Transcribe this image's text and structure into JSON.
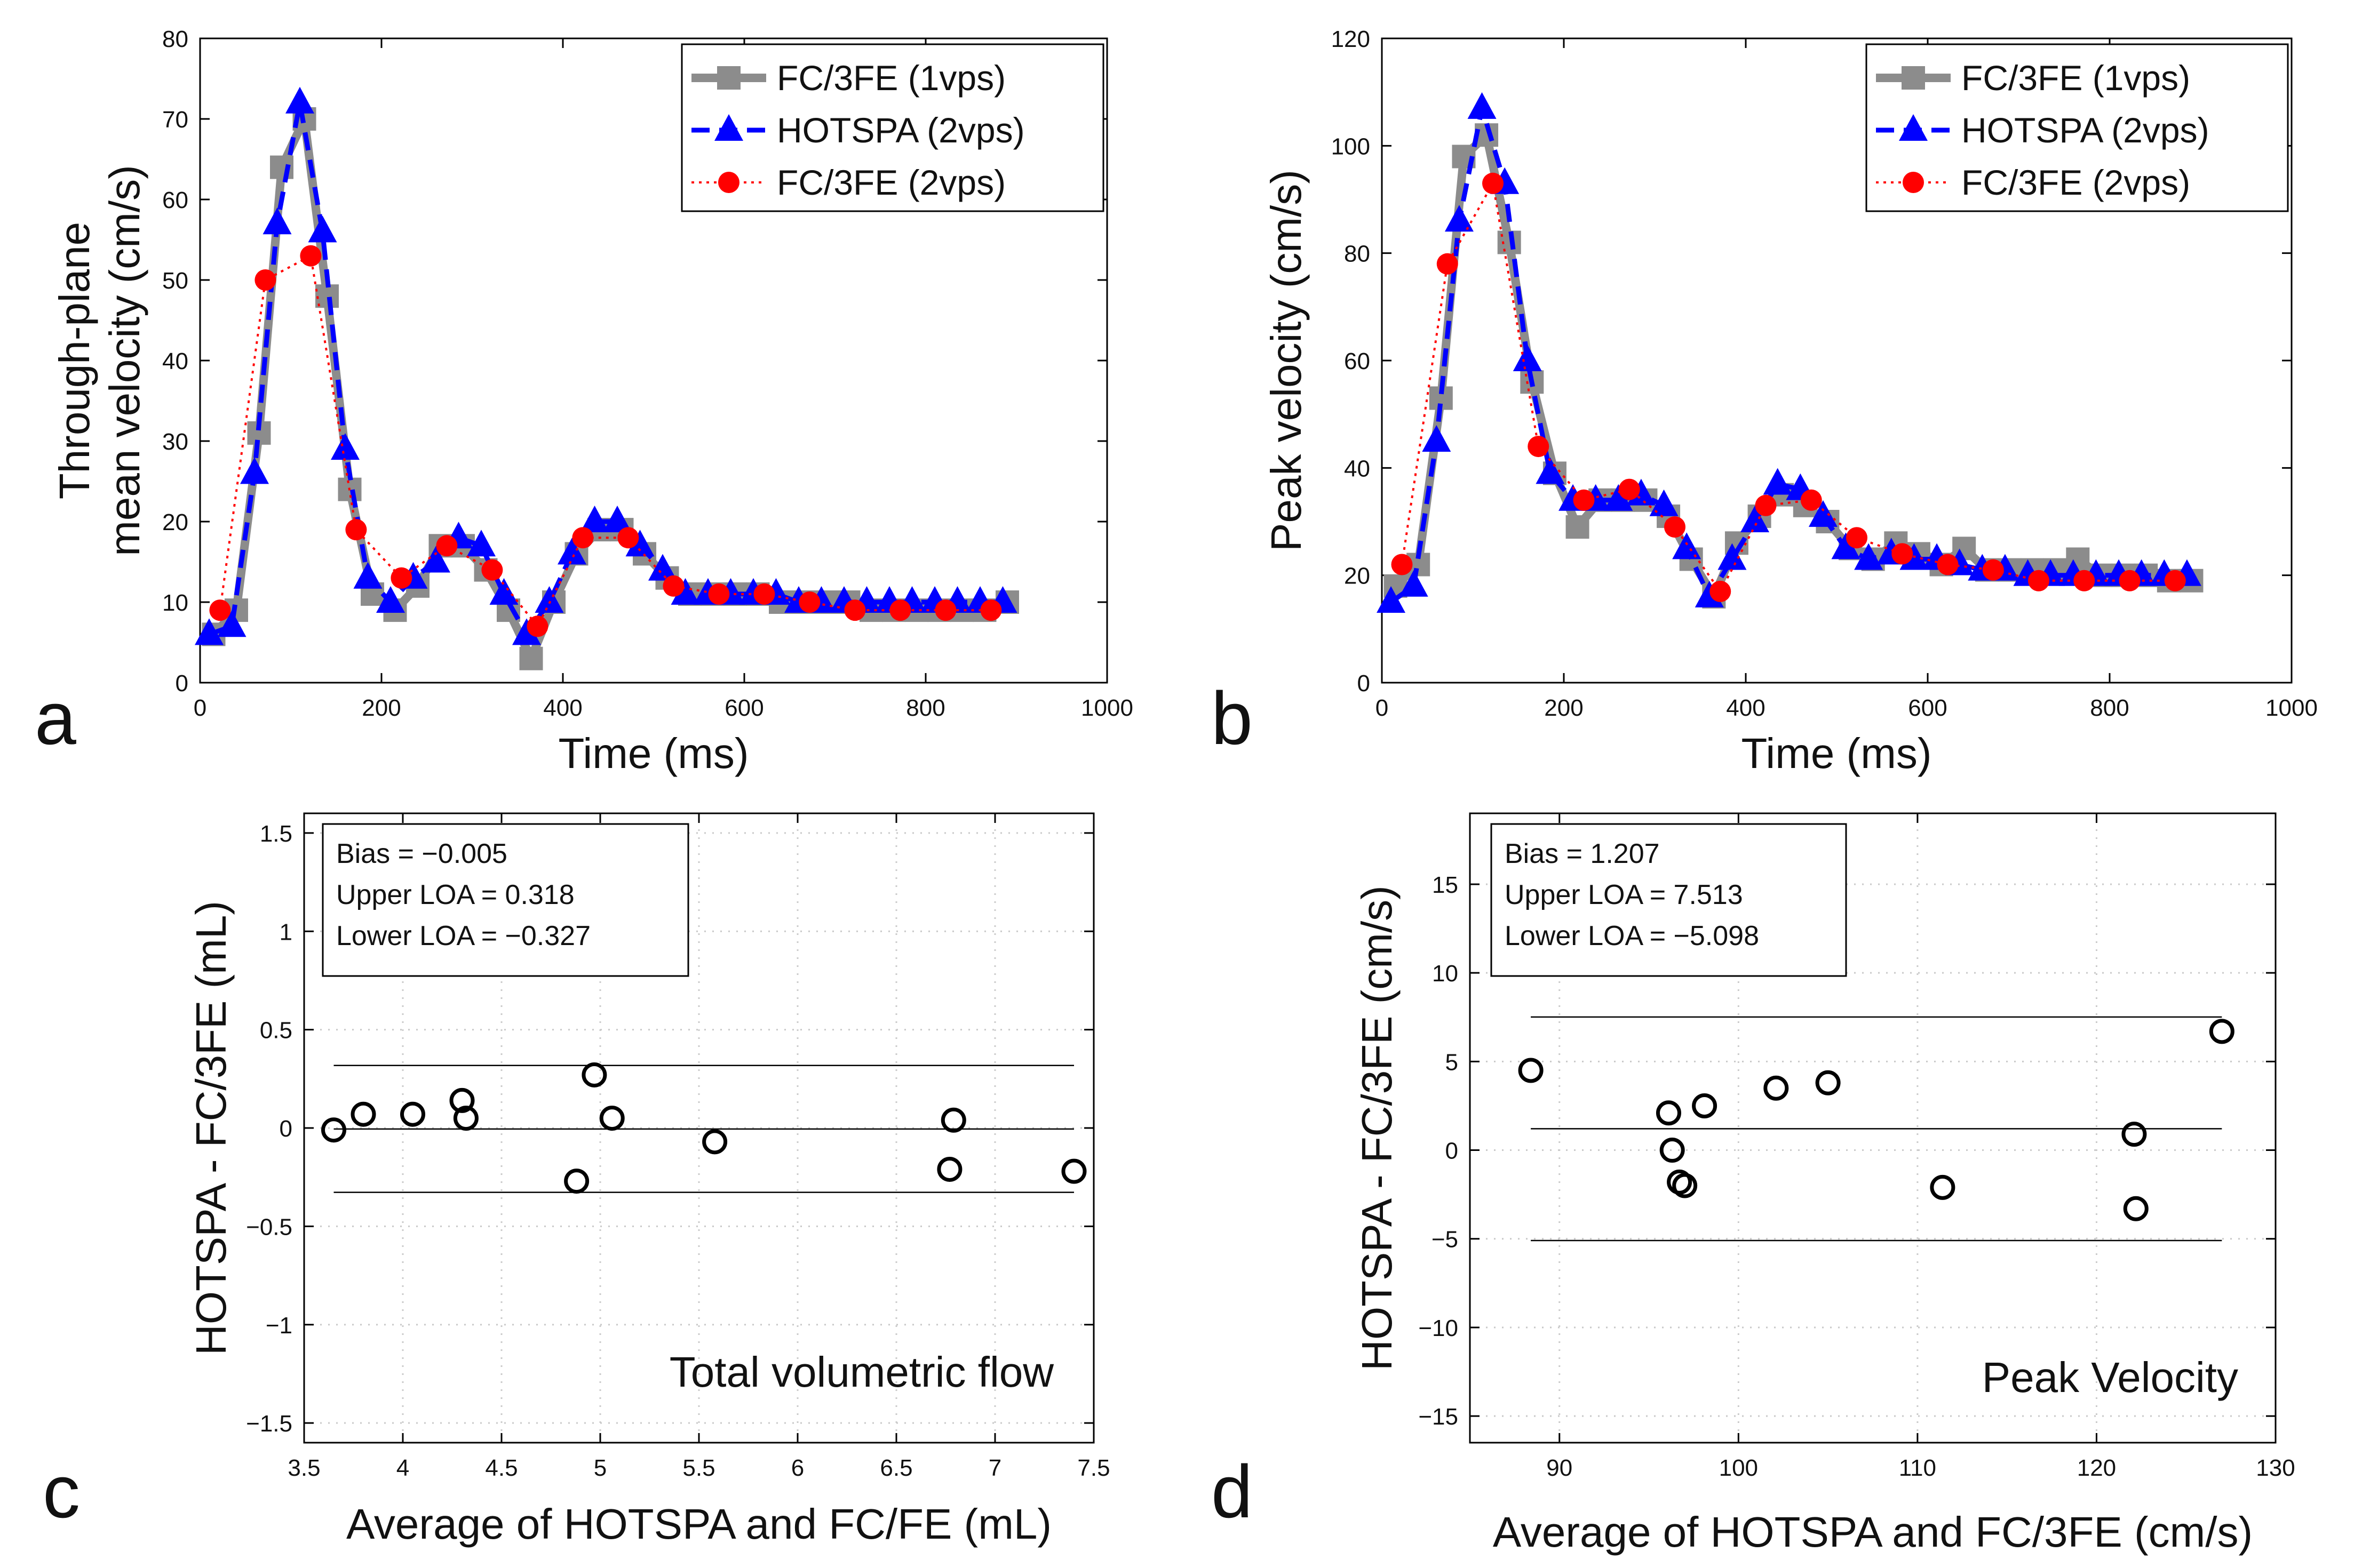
{
  "figure": {
    "panels": {
      "a": "a",
      "b": "b",
      "c": "c",
      "d": "d"
    }
  },
  "chart_data": [
    {
      "id": "a",
      "type": "line",
      "title": "",
      "xlabel": "Time (ms)",
      "ylabel_lines": [
        "Through-plane",
        "mean velocity (cm/s)"
      ],
      "xlim": [
        0,
        1000
      ],
      "ylim": [
        0,
        80
      ],
      "xticks": [
        0,
        200,
        400,
        600,
        800,
        1000
      ],
      "yticks": [
        0,
        10,
        20,
        30,
        40,
        50,
        60,
        70,
        80
      ],
      "grid": false,
      "legend_position": "top-right",
      "series": [
        {
          "name": "FC/3FE (1vps)",
          "color": "#8c8c8c",
          "marker": "square",
          "dash": "solid",
          "x": [
            15,
            40,
            65,
            90,
            115,
            140,
            165,
            190,
            215,
            240,
            265,
            290,
            315,
            340,
            365,
            390,
            415,
            440,
            465,
            490,
            515,
            540,
            565,
            590,
            615,
            640,
            665,
            690,
            715,
            740,
            765,
            790,
            815,
            840,
            865,
            890
          ],
          "y": [
            6,
            9,
            31,
            64,
            70,
            48,
            24,
            11,
            9,
            12,
            17,
            17,
            14,
            9,
            3,
            10,
            16,
            19,
            19,
            16,
            13,
            11,
            11,
            11,
            11,
            10,
            10,
            10,
            10,
            9,
            9,
            9,
            9,
            9,
            9,
            10
          ]
        },
        {
          "name": "HOTSPA (2vps)",
          "color": "#0000ff",
          "marker": "triangle",
          "dash": "dashed",
          "x": [
            10,
            35,
            60,
            85,
            110,
            135,
            160,
            185,
            210,
            235,
            260,
            285,
            310,
            335,
            360,
            385,
            410,
            435,
            460,
            485,
            510,
            535,
            560,
            585,
            610,
            635,
            660,
            685,
            710,
            735,
            760,
            785,
            810,
            835,
            860,
            885
          ],
          "y": [
            6,
            7,
            26,
            57,
            72,
            56,
            29,
            13,
            10,
            13,
            15,
            18,
            17,
            11,
            6,
            10,
            16,
            20,
            20,
            17,
            14,
            11,
            11,
            11,
            11,
            11,
            10,
            10,
            10,
            10,
            10,
            10,
            10,
            10,
            10,
            10
          ]
        },
        {
          "name": "FC/3FE (2vps)",
          "color": "#ff0000",
          "marker": "circle",
          "dash": "dotted",
          "x": [
            22,
            72,
            122,
            172,
            222,
            272,
            322,
            372,
            422,
            472,
            522,
            572,
            622,
            672,
            722,
            772,
            822,
            872
          ],
          "y": [
            9,
            50,
            53,
            19,
            13,
            17,
            14,
            7,
            18,
            18,
            12,
            11,
            11,
            10,
            9,
            9,
            9,
            9
          ]
        }
      ]
    },
    {
      "id": "b",
      "type": "line",
      "title": "",
      "xlabel": "Time (ms)",
      "ylabel_lines": [
        "Peak velocity (cm/s)"
      ],
      "xlim": [
        0,
        1000
      ],
      "ylim": [
        0,
        120
      ],
      "xticks": [
        0,
        200,
        400,
        600,
        800,
        1000
      ],
      "yticks": [
        0,
        20,
        40,
        60,
        80,
        100,
        120
      ],
      "grid": false,
      "legend_position": "top-right",
      "series": [
        {
          "name": "FC/3FE (1vps)",
          "color": "#8c8c8c",
          "marker": "square",
          "dash": "solid",
          "x": [
            15,
            40,
            65,
            90,
            115,
            140,
            165,
            190,
            215,
            240,
            265,
            290,
            315,
            340,
            365,
            390,
            415,
            440,
            465,
            490,
            515,
            540,
            565,
            590,
            615,
            640,
            665,
            690,
            715,
            740,
            765,
            790,
            815,
            840,
            865,
            890
          ],
          "y": [
            18,
            22,
            53,
            98,
            102,
            82,
            56,
            39,
            29,
            34,
            34,
            34,
            31,
            23,
            16,
            26,
            31,
            35,
            33,
            30,
            25,
            23,
            26,
            24,
            22,
            25,
            21,
            21,
            21,
            21,
            23,
            20,
            20,
            20,
            19,
            19
          ]
        },
        {
          "name": "HOTSPA (2vps)",
          "color": "#0000ff",
          "marker": "triangle",
          "dash": "dashed",
          "x": [
            10,
            35,
            60,
            85,
            110,
            135,
            160,
            185,
            210,
            235,
            260,
            285,
            310,
            335,
            360,
            385,
            410,
            435,
            460,
            485,
            510,
            535,
            560,
            585,
            610,
            635,
            660,
            685,
            710,
            735,
            760,
            785,
            810,
            835,
            860,
            885
          ],
          "y": [
            15,
            18,
            45,
            86,
            107,
            93,
            60,
            39,
            34,
            34,
            34,
            35,
            33,
            25,
            16,
            23,
            30,
            37,
            36,
            31,
            25,
            23,
            24,
            23,
            23,
            22,
            21,
            21,
            20,
            20,
            20,
            20,
            20,
            20,
            20,
            20
          ]
        },
        {
          "name": "FC/3FE (2vps)",
          "color": "#ff0000",
          "marker": "circle",
          "dash": "dotted",
          "x": [
            22,
            72,
            122,
            172,
            222,
            272,
            322,
            372,
            422,
            472,
            522,
            572,
            622,
            672,
            722,
            772,
            822,
            872
          ],
          "y": [
            22,
            78,
            93,
            44,
            34,
            36,
            29,
            17,
            33,
            34,
            27,
            24,
            22,
            21,
            19,
            19,
            19,
            19
          ]
        }
      ]
    },
    {
      "id": "c",
      "type": "scatter",
      "title": "",
      "annotation": "Total volumetric flow",
      "xlabel": "Average of HOTSPA and FC/FE (mL)",
      "ylabel_lines": [
        "HOTSPA - FC/3FE (mL)"
      ],
      "xlim": [
        3.5,
        7.5
      ],
      "ylim": [
        -1.6,
        1.6
      ],
      "xticks": [
        3.5,
        4,
        4.5,
        5,
        5.5,
        6,
        6.5,
        7,
        7.5
      ],
      "yticks": [
        -1.5,
        -1,
        -0.5,
        0,
        0.5,
        1,
        1.5
      ],
      "ytick_labels": [
        "−1.5",
        "−1",
        "−0.5",
        "0",
        "0.5",
        "1",
        "1.5"
      ],
      "grid": true,
      "stats": [
        "Bias = −0.005",
        "Upper LOA = 0.318",
        "Lower LOA = −0.327"
      ],
      "bias": -0.005,
      "upper_loa": 0.318,
      "lower_loa": -0.327,
      "line_xrange": [
        3.65,
        7.4
      ],
      "x": [
        3.65,
        3.8,
        4.05,
        4.3,
        4.32,
        4.88,
        4.97,
        5.06,
        5.58,
        6.77,
        6.79,
        7.4
      ],
      "y": [
        -0.01,
        0.07,
        0.07,
        0.14,
        0.05,
        -0.27,
        0.27,
        0.05,
        -0.07,
        -0.21,
        0.04,
        -0.22
      ]
    },
    {
      "id": "d",
      "type": "scatter",
      "title": "",
      "annotation": "Peak Velocity",
      "xlabel": "Average of HOTSPA and FC/3FE (cm/s)",
      "ylabel_lines": [
        "HOTSPA - FC/3FE (cm/s)"
      ],
      "xlim": [
        85,
        130
      ],
      "ylim": [
        -16.5,
        19
      ],
      "xticks": [
        90,
        100,
        110,
        120,
        130
      ],
      "yticks": [
        -15,
        -10,
        -5,
        0,
        5,
        10,
        15
      ],
      "ytick_labels": [
        "−15",
        "−10",
        "−5",
        "0",
        "5",
        "10",
        "15"
      ],
      "grid": true,
      "stats": [
        "Bias = 1.207",
        "Upper LOA = 7.513",
        "Lower LOA = −5.098"
      ],
      "bias": 1.207,
      "upper_loa": 7.513,
      "lower_loa": -5.098,
      "line_xrange": [
        88.4,
        127
      ],
      "x": [
        88.4,
        96.1,
        96.3,
        96.7,
        97.0,
        98.1,
        102.1,
        105.0,
        111.4,
        122.1,
        122.2,
        127.0
      ],
      "y": [
        4.5,
        2.1,
        0.0,
        -1.8,
        -2.0,
        2.5,
        3.5,
        3.8,
        -2.1,
        0.9,
        -3.3,
        6.7
      ]
    }
  ]
}
